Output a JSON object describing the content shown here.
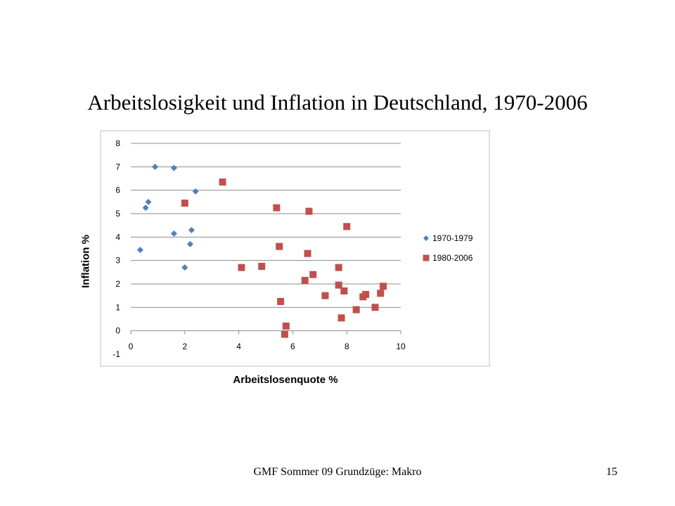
{
  "slide": {
    "title": "Arbeitslosigkeit und Inflation in Deutschland, 1970-2006",
    "footer": "GMF Sommer 09 Grundzüge: Makro",
    "page_number": "15"
  },
  "chart_data": {
    "type": "scatter",
    "title": "",
    "xlabel": "Arbeitslosenquote %",
    "ylabel": "Inflation %",
    "xlim": [
      0,
      10
    ],
    "ylim": [
      -1,
      8
    ],
    "xticks": [
      0,
      2,
      4,
      6,
      8,
      10
    ],
    "yticks": [
      -1,
      0,
      1,
      2,
      3,
      4,
      5,
      6,
      7,
      8
    ],
    "grid": "horizontal",
    "legend": "right",
    "series": [
      {
        "name": "1970-1979",
        "marker": "diamond",
        "color": "#4F81BD",
        "points": [
          {
            "x": 0.9,
            "y": 7.0
          },
          {
            "x": 1.6,
            "y": 6.95
          },
          {
            "x": 2.4,
            "y": 5.95
          },
          {
            "x": 0.65,
            "y": 5.5
          },
          {
            "x": 0.55,
            "y": 5.25
          },
          {
            "x": 2.25,
            "y": 4.3
          },
          {
            "x": 1.6,
            "y": 4.15
          },
          {
            "x": 2.2,
            "y": 3.7
          },
          {
            "x": 0.35,
            "y": 3.45
          },
          {
            "x": 2.0,
            "y": 2.7
          }
        ]
      },
      {
        "name": "1980-2006",
        "marker": "square",
        "color": "#C0504D",
        "points": [
          {
            "x": 3.4,
            "y": 6.35
          },
          {
            "x": 2.0,
            "y": 5.45
          },
          {
            "x": 5.4,
            "y": 5.25
          },
          {
            "x": 6.6,
            "y": 5.1
          },
          {
            "x": 8.0,
            "y": 4.45
          },
          {
            "x": 5.5,
            "y": 3.6
          },
          {
            "x": 6.55,
            "y": 3.3
          },
          {
            "x": 4.1,
            "y": 2.7
          },
          {
            "x": 4.85,
            "y": 2.75
          },
          {
            "x": 7.7,
            "y": 2.7
          },
          {
            "x": 6.75,
            "y": 2.4
          },
          {
            "x": 6.45,
            "y": 2.15
          },
          {
            "x": 7.7,
            "y": 1.95
          },
          {
            "x": 7.9,
            "y": 1.7
          },
          {
            "x": 7.2,
            "y": 1.5
          },
          {
            "x": 8.6,
            "y": 1.45
          },
          {
            "x": 8.7,
            "y": 1.55
          },
          {
            "x": 9.25,
            "y": 1.6
          },
          {
            "x": 9.35,
            "y": 1.9
          },
          {
            "x": 5.55,
            "y": 1.25
          },
          {
            "x": 8.35,
            "y": 0.9
          },
          {
            "x": 9.05,
            "y": 1.0
          },
          {
            "x": 7.8,
            "y": 0.55
          },
          {
            "x": 5.75,
            "y": 0.2
          },
          {
            "x": 5.7,
            "y": -0.15
          }
        ]
      }
    ]
  }
}
